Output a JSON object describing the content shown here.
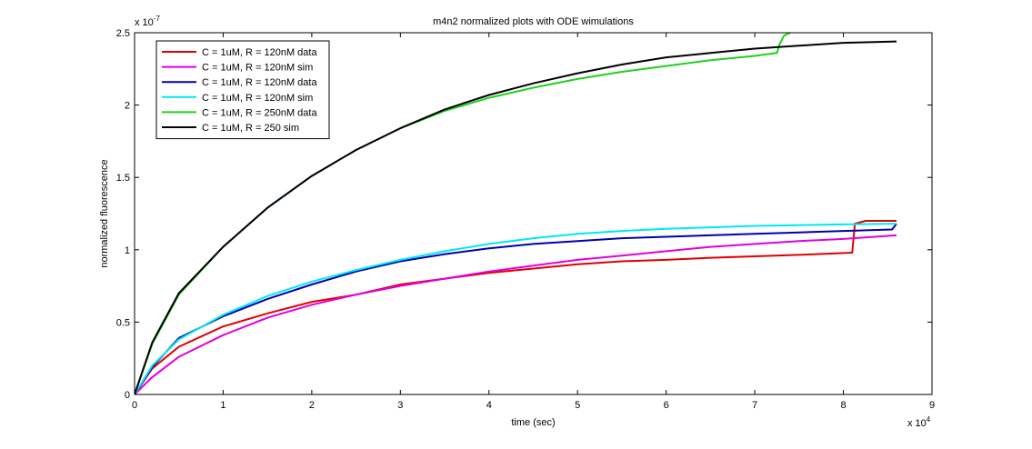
{
  "chart_data": {
    "type": "line",
    "title": "m4n2 normalized plots with ODE wimulations",
    "xlabel": "time (sec)",
    "ylabel": "normalized fluorescence",
    "x_multiplier": {
      "base": "x 10",
      "exp": "4"
    },
    "y_multiplier": {
      "base": "x 10",
      "exp": "-7"
    },
    "xlim": [
      0,
      90000
    ],
    "ylim": [
      0,
      2.5e-07
    ],
    "xticks": [
      0,
      10000,
      20000,
      30000,
      40000,
      50000,
      60000,
      70000,
      80000,
      90000
    ],
    "xtick_labels": [
      "0",
      "1",
      "2",
      "3",
      "4",
      "5",
      "6",
      "7",
      "8",
      "9"
    ],
    "yticks": [
      0,
      5e-08,
      1e-07,
      1.5e-07,
      2e-07,
      2.5e-07
    ],
    "ytick_labels": [
      "0",
      "0.5",
      "1",
      "1.5",
      "2",
      "2.5"
    ],
    "grid": false,
    "legend_position": "top-left",
    "series": [
      {
        "name": "C = 1uM, R = 120nM data",
        "color": "#e00000",
        "points": [
          [
            0,
            0
          ],
          [
            2000,
            1.8e-08
          ],
          [
            5000,
            3.3e-08
          ],
          [
            10000,
            4.7e-08
          ],
          [
            15000,
            5.6e-08
          ],
          [
            20000,
            6.4e-08
          ],
          [
            25000,
            6.9e-08
          ],
          [
            30000,
            7.6e-08
          ],
          [
            35000,
            8e-08
          ],
          [
            40000,
            8.4e-08
          ],
          [
            45000,
            8.7e-08
          ],
          [
            50000,
            9e-08
          ],
          [
            55000,
            9.2e-08
          ],
          [
            60000,
            9.3e-08
          ],
          [
            65000,
            9.45e-08
          ],
          [
            70000,
            9.55e-08
          ],
          [
            75000,
            9.65e-08
          ],
          [
            81000,
            9.8e-08
          ],
          [
            81300,
            1.18e-07
          ],
          [
            82500,
            1.2e-07
          ],
          [
            86000,
            1.2e-07
          ]
        ]
      },
      {
        "name": "C = 1uM, R = 120nM sim",
        "color": "#e000e0",
        "points": [
          [
            0,
            0
          ],
          [
            2000,
            1.2e-08
          ],
          [
            5000,
            2.6e-08
          ],
          [
            10000,
            4.1e-08
          ],
          [
            15000,
            5.3e-08
          ],
          [
            20000,
            6.2e-08
          ],
          [
            25000,
            6.9e-08
          ],
          [
            30000,
            7.5e-08
          ],
          [
            35000,
            8e-08
          ],
          [
            40000,
            8.5e-08
          ],
          [
            45000,
            8.9e-08
          ],
          [
            50000,
            9.3e-08
          ],
          [
            55000,
            9.6e-08
          ],
          [
            60000,
            9.9e-08
          ],
          [
            65000,
            1.02e-07
          ],
          [
            70000,
            1.04e-07
          ],
          [
            75000,
            1.06e-07
          ],
          [
            80000,
            1.075e-07
          ],
          [
            86000,
            1.1e-07
          ]
        ]
      },
      {
        "name": "C = 1uM, R = 120nM data",
        "color": "#0000b0",
        "points": [
          [
            0,
            0
          ],
          [
            2000,
            1.9e-08
          ],
          [
            5000,
            3.9e-08
          ],
          [
            10000,
            5.4e-08
          ],
          [
            15000,
            6.6e-08
          ],
          [
            20000,
            7.6e-08
          ],
          [
            25000,
            8.5e-08
          ],
          [
            30000,
            9.2e-08
          ],
          [
            35000,
            9.7e-08
          ],
          [
            40000,
            1.01e-07
          ],
          [
            45000,
            1.04e-07
          ],
          [
            50000,
            1.06e-07
          ],
          [
            55000,
            1.08e-07
          ],
          [
            60000,
            1.09e-07
          ],
          [
            65000,
            1.1e-07
          ],
          [
            70000,
            1.11e-07
          ],
          [
            75000,
            1.12e-07
          ],
          [
            80000,
            1.13e-07
          ],
          [
            85500,
            1.14e-07
          ],
          [
            86000,
            1.18e-07
          ]
        ]
      },
      {
        "name": "C = 1uM, R = 120nM sim",
        "color": "#00e8f0",
        "points": [
          [
            0,
            0
          ],
          [
            2000,
            2e-08
          ],
          [
            5000,
            3.8e-08
          ],
          [
            10000,
            5.5e-08
          ],
          [
            15000,
            6.8e-08
          ],
          [
            20000,
            7.8e-08
          ],
          [
            25000,
            8.6e-08
          ],
          [
            30000,
            9.3e-08
          ],
          [
            35000,
            9.9e-08
          ],
          [
            40000,
            1.04e-07
          ],
          [
            45000,
            1.08e-07
          ],
          [
            50000,
            1.11e-07
          ],
          [
            55000,
            1.13e-07
          ],
          [
            60000,
            1.145e-07
          ],
          [
            65000,
            1.155e-07
          ],
          [
            70000,
            1.165e-07
          ],
          [
            75000,
            1.17e-07
          ],
          [
            80000,
            1.175e-07
          ],
          [
            86000,
            1.18e-07
          ]
        ]
      },
      {
        "name": "C = 1uM, R = 250nM data",
        "color": "#20d020",
        "points": [
          [
            0,
            0
          ],
          [
            2000,
            3.5e-08
          ],
          [
            5000,
            6.9e-08
          ],
          [
            10000,
            1.02e-07
          ],
          [
            15000,
            1.29e-07
          ],
          [
            20000,
            1.51e-07
          ],
          [
            25000,
            1.69e-07
          ],
          [
            30000,
            1.84e-07
          ],
          [
            35000,
            1.96e-07
          ],
          [
            40000,
            2.05e-07
          ],
          [
            45000,
            2.12e-07
          ],
          [
            50000,
            2.18e-07
          ],
          [
            55000,
            2.23e-07
          ],
          [
            60000,
            2.27e-07
          ],
          [
            65000,
            2.31e-07
          ],
          [
            70000,
            2.34e-07
          ],
          [
            72500,
            2.36e-07
          ],
          [
            72800,
            2.42e-07
          ],
          [
            73300,
            2.48e-07
          ],
          [
            74000,
            2.5e-07
          ]
        ]
      },
      {
        "name": "C = 1uM, R = 250 sim",
        "color": "#000000",
        "points": [
          [
            0,
            0
          ],
          [
            2000,
            3.6e-08
          ],
          [
            5000,
            7e-08
          ],
          [
            10000,
            1.02e-07
          ],
          [
            15000,
            1.29e-07
          ],
          [
            20000,
            1.51e-07
          ],
          [
            25000,
            1.69e-07
          ],
          [
            30000,
            1.84e-07
          ],
          [
            35000,
            1.97e-07
          ],
          [
            40000,
            2.07e-07
          ],
          [
            45000,
            2.15e-07
          ],
          [
            50000,
            2.22e-07
          ],
          [
            55000,
            2.28e-07
          ],
          [
            60000,
            2.33e-07
          ],
          [
            65000,
            2.36e-07
          ],
          [
            70000,
            2.39e-07
          ],
          [
            75000,
            2.41e-07
          ],
          [
            80000,
            2.43e-07
          ],
          [
            86000,
            2.44e-07
          ]
        ]
      }
    ]
  }
}
